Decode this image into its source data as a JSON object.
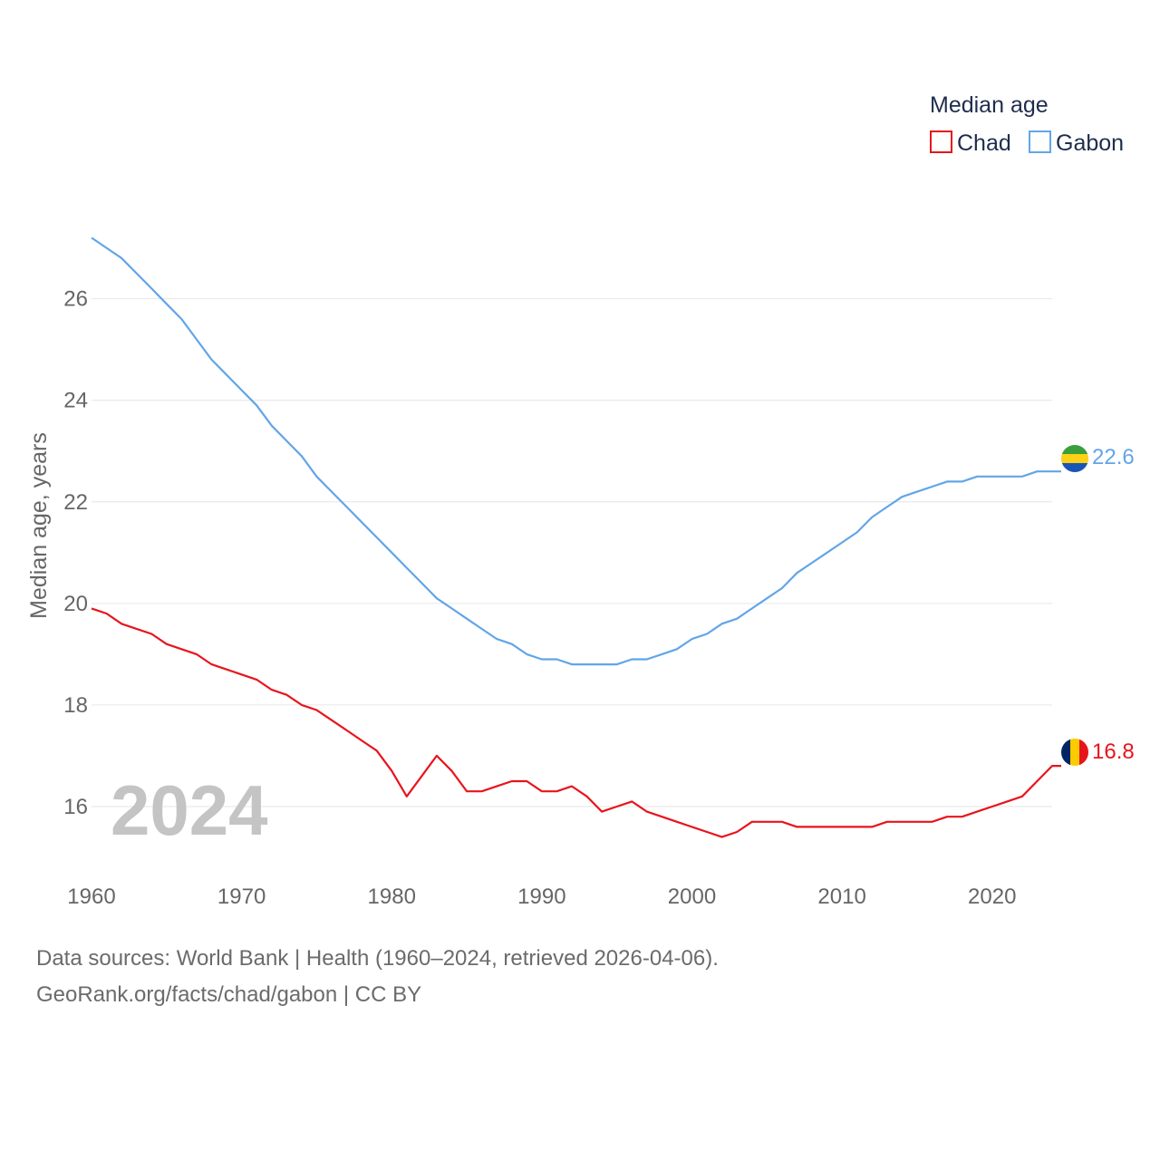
{
  "chart_data": {
    "type": "line",
    "title": "",
    "xlabel": "",
    "ylabel": "Median age, years",
    "xlim": [
      1960,
      2024
    ],
    "ylim": [
      15,
      27.6
    ],
    "yticks": [
      16,
      18,
      20,
      22,
      24,
      26
    ],
    "xticks": [
      1960,
      1970,
      1980,
      1990,
      2000,
      2010,
      2020
    ],
    "grid": true,
    "legend_title": "Median age",
    "legend_position": "top-right",
    "year_label": "2024",
    "x": [
      1960,
      1961,
      1962,
      1963,
      1964,
      1965,
      1966,
      1967,
      1968,
      1969,
      1970,
      1971,
      1972,
      1973,
      1974,
      1975,
      1976,
      1977,
      1978,
      1979,
      1980,
      1981,
      1982,
      1983,
      1984,
      1985,
      1986,
      1987,
      1988,
      1989,
      1990,
      1991,
      1992,
      1993,
      1994,
      1995,
      1996,
      1997,
      1998,
      1999,
      2000,
      2001,
      2002,
      2003,
      2004,
      2005,
      2006,
      2007,
      2008,
      2009,
      2010,
      2011,
      2012,
      2013,
      2014,
      2015,
      2016,
      2017,
      2018,
      2019,
      2020,
      2021,
      2022,
      2023,
      2024
    ],
    "series": [
      {
        "name": "Chad",
        "color": "#e8141c",
        "end_label": "16.8",
        "flag": "chad-flag",
        "values": [
          19.9,
          19.8,
          19.6,
          19.5,
          19.4,
          19.2,
          19.1,
          19.0,
          18.8,
          18.7,
          18.6,
          18.5,
          18.3,
          18.2,
          18.0,
          17.9,
          17.7,
          17.5,
          17.3,
          17.1,
          16.7,
          16.2,
          16.6,
          17.0,
          16.7,
          16.3,
          16.3,
          16.4,
          16.5,
          16.5,
          16.3,
          16.3,
          16.4,
          16.2,
          15.9,
          16.0,
          16.1,
          15.9,
          15.8,
          15.7,
          15.6,
          15.5,
          15.4,
          15.5,
          15.7,
          15.7,
          15.7,
          15.6,
          15.6,
          15.6,
          15.6,
          15.6,
          15.6,
          15.7,
          15.7,
          15.7,
          15.7,
          15.8,
          15.8,
          15.9,
          16.0,
          16.1,
          16.2,
          16.5,
          16.8
        ]
      },
      {
        "name": "Gabon",
        "color": "#62a5e8",
        "end_label": "22.6",
        "flag": "gabon-flag",
        "values": [
          27.2,
          27.0,
          26.8,
          26.5,
          26.2,
          25.9,
          25.6,
          25.2,
          24.8,
          24.5,
          24.2,
          23.9,
          23.5,
          23.2,
          22.9,
          22.5,
          22.2,
          21.9,
          21.6,
          21.3,
          21.0,
          20.7,
          20.4,
          20.1,
          19.9,
          19.7,
          19.5,
          19.3,
          19.2,
          19.0,
          18.9,
          18.9,
          18.8,
          18.8,
          18.8,
          18.8,
          18.9,
          18.9,
          19.0,
          19.1,
          19.3,
          19.4,
          19.6,
          19.7,
          19.9,
          20.1,
          20.3,
          20.6,
          20.8,
          21.0,
          21.2,
          21.4,
          21.7,
          21.9,
          22.1,
          22.2,
          22.3,
          22.4,
          22.4,
          22.5,
          22.5,
          22.5,
          22.5,
          22.6,
          22.6
        ]
      }
    ]
  },
  "footer": {
    "line1": "Data sources: World Bank | Health (1960–2024, retrieved 2026-04-06).",
    "line2": "GeoRank.org/facts/chad/gabon | CC BY"
  }
}
